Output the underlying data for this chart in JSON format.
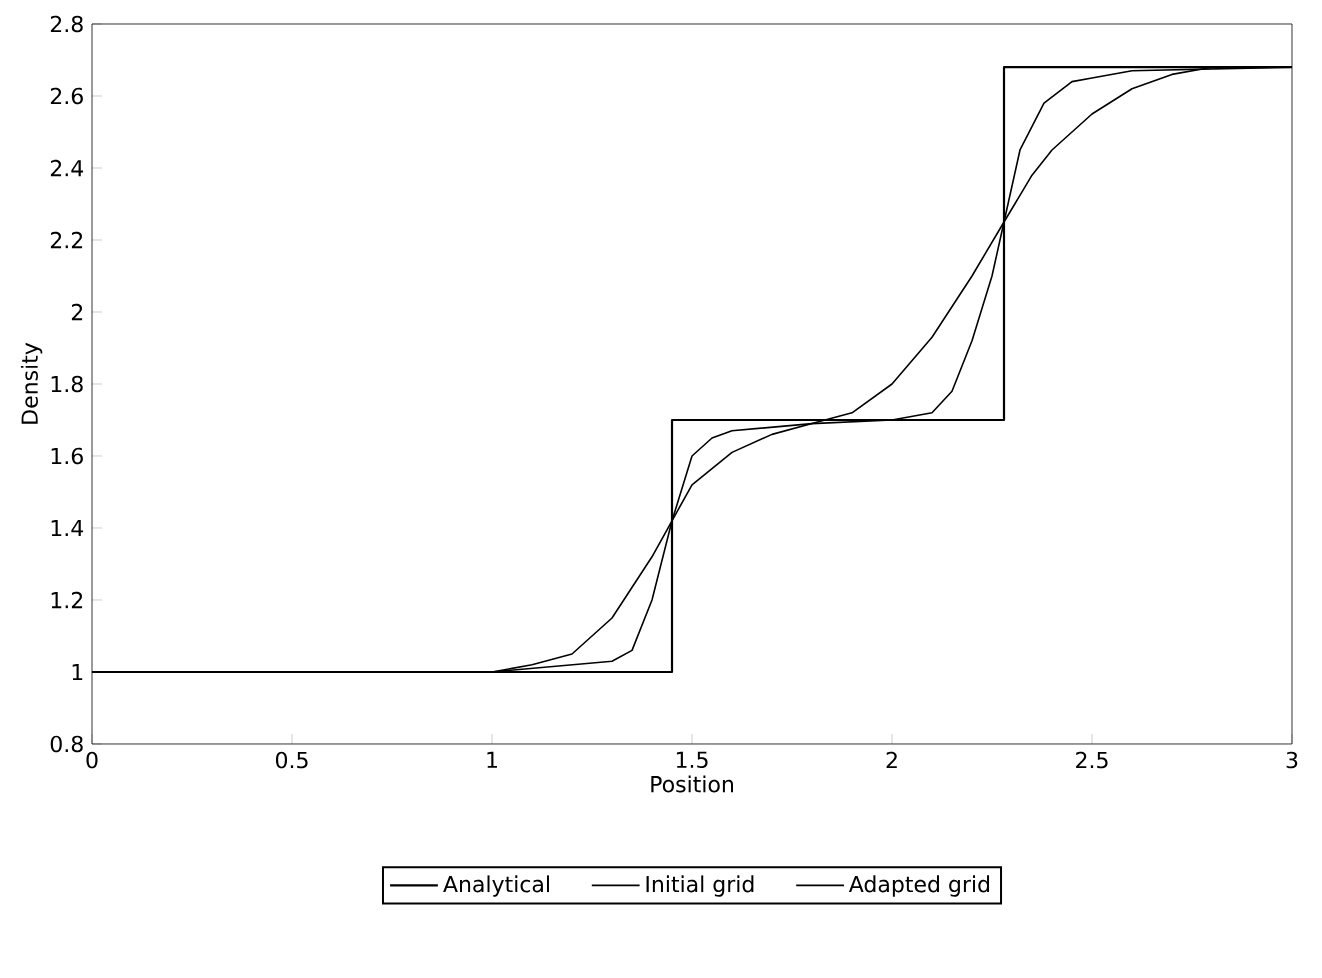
{
  "chart_data": {
    "type": "line",
    "xlabel": "Position",
    "ylabel": "Density",
    "xlim": [
      0,
      3
    ],
    "ylim": [
      0.8,
      2.8
    ],
    "xticks": [
      0,
      0.5,
      1,
      1.5,
      2,
      2.5,
      3
    ],
    "yticks": [
      0.8,
      1,
      1.2,
      1.4,
      1.6,
      1.8,
      2,
      2.2,
      2.4,
      2.6,
      2.8
    ],
    "legend": "bottom",
    "grid": false,
    "marker": "none",
    "line_style": "solid",
    "series": [
      {
        "name": "Analytical",
        "color": "#000000",
        "x": [
          0,
          1.45,
          1.45,
          2.28,
          2.28,
          3
        ],
        "values": [
          1,
          1,
          1.7,
          1.7,
          2.68,
          2.68
        ]
      },
      {
        "name": "Initial grid",
        "color": "#000000",
        "x": [
          0.9,
          1.0,
          1.1,
          1.2,
          1.3,
          1.4,
          1.45,
          1.5,
          1.6,
          1.7,
          1.8,
          1.9,
          2.0,
          2.1,
          2.2,
          2.28,
          2.35,
          2.4,
          2.5,
          2.6,
          2.7,
          2.8,
          3
        ],
        "values": [
          1,
          1,
          1.02,
          1.05,
          1.15,
          1.32,
          1.42,
          1.52,
          1.61,
          1.66,
          1.69,
          1.72,
          1.8,
          1.93,
          2.1,
          2.25,
          2.38,
          2.45,
          2.55,
          2.62,
          2.66,
          2.68,
          2.68
        ]
      },
      {
        "name": "Adapted grid",
        "color": "#000000",
        "x": [
          0.95,
          1.0,
          1.1,
          1.2,
          1.3,
          1.35,
          1.4,
          1.45,
          1.5,
          1.55,
          1.6,
          1.8,
          2.0,
          2.1,
          2.15,
          2.2,
          2.25,
          2.28,
          2.32,
          2.38,
          2.45,
          2.5,
          2.6,
          3
        ],
        "values": [
          1,
          1,
          1.01,
          1.02,
          1.03,
          1.06,
          1.2,
          1.42,
          1.6,
          1.65,
          1.67,
          1.69,
          1.7,
          1.72,
          1.78,
          1.92,
          2.1,
          2.25,
          2.45,
          2.58,
          2.64,
          2.65,
          2.67,
          2.68
        ]
      }
    ]
  }
}
